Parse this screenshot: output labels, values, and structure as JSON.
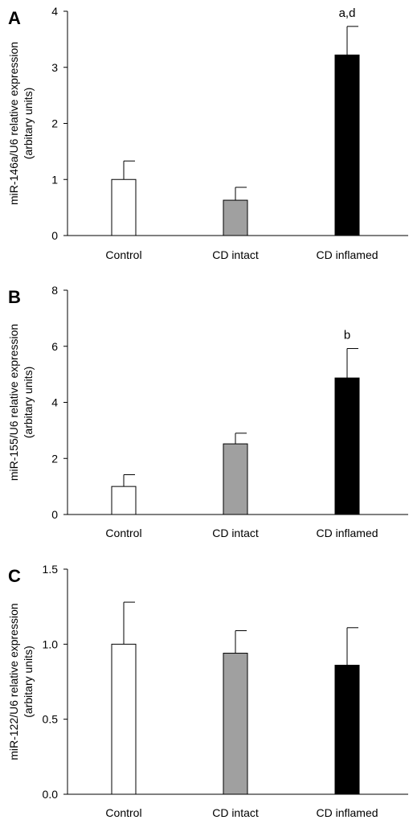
{
  "chart_data": [
    {
      "type": "bar",
      "panel": "A",
      "categories": [
        "Control",
        "CD intact",
        "CD inflamed"
      ],
      "values": [
        1.0,
        0.63,
        3.22
      ],
      "errors": [
        0.33,
        0.23,
        0.51
      ],
      "bar_colors": [
        "#ffffff",
        "#a0a0a0",
        "#000000"
      ],
      "annotations": [
        "",
        "",
        "a,d"
      ],
      "ylabel_line1": "miR-146a/U6 relative expression",
      "ylabel_line2": "(arbitary units)",
      "ylim": [
        0,
        4
      ],
      "yticks": [
        0,
        1,
        2,
        3,
        4
      ],
      "ytick_labels": [
        "0",
        "1",
        "2",
        "3",
        "4"
      ],
      "grid": false
    },
    {
      "type": "bar",
      "panel": "B",
      "categories": [
        "Control",
        "CD intact",
        "CD inflamed"
      ],
      "values": [
        1.0,
        2.52,
        4.87
      ],
      "errors": [
        0.42,
        0.38,
        1.05
      ],
      "bar_colors": [
        "#ffffff",
        "#a0a0a0",
        "#000000"
      ],
      "annotations": [
        "",
        "",
        "b"
      ],
      "ylabel_line1": "miR-155/U6 relative expression",
      "ylabel_line2": "(arbitary units)",
      "ylim": [
        0,
        8
      ],
      "yticks": [
        0,
        2,
        4,
        6,
        8
      ],
      "ytick_labels": [
        "0",
        "2",
        "4",
        "6",
        "8"
      ],
      "grid": false
    },
    {
      "type": "bar",
      "panel": "C",
      "categories": [
        "Control",
        "CD intact",
        "CD inflamed"
      ],
      "values": [
        1.0,
        0.94,
        0.86
      ],
      "errors": [
        0.28,
        0.15,
        0.25
      ],
      "bar_colors": [
        "#ffffff",
        "#a0a0a0",
        "#000000"
      ],
      "annotations": [
        "",
        "",
        ""
      ],
      "ylabel_line1": "miR-122/U6 relative expression",
      "ylabel_line2": "(arbitary units)",
      "ylim": [
        0,
        1.5
      ],
      "yticks": [
        0,
        0.5,
        1.0,
        1.5
      ],
      "ytick_labels": [
        "0.0",
        "0.5",
        "1.0",
        "1.5"
      ],
      "grid": false
    }
  ]
}
